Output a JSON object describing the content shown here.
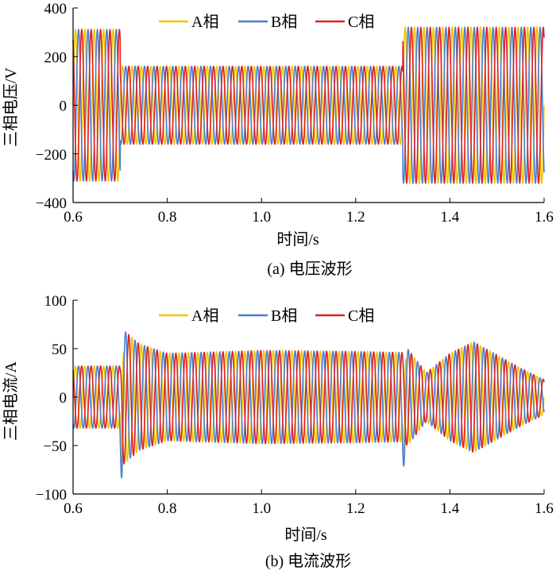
{
  "colors": {
    "A": "#f2c500",
    "B": "#4a7fd0",
    "C": "#e02020",
    "axis": "#000000"
  },
  "chart_data": [
    {
      "type": "line",
      "caption": "(a)  电压波形",
      "xlabel": "时间/s",
      "ylabel": "三相电压/V",
      "xlim": [
        0.6,
        1.6
      ],
      "ylim": [
        -400,
        400
      ],
      "xticks": [
        "0.6",
        "0.8",
        "1.0",
        "1.2",
        "1.4",
        "1.6"
      ],
      "yticks": [
        "400",
        "200",
        "0",
        "−200",
        "−400"
      ],
      "legend": {
        "position": "top",
        "entries": [
          "A相",
          "B相",
          "C相"
        ]
      },
      "frequency_hz": 50,
      "series": [
        {
          "name": "A相",
          "phase_deg": 0
        },
        {
          "name": "B相",
          "phase_deg": -120
        },
        {
          "name": "C相",
          "phase_deg": 120
        }
      ],
      "amplitude_profile": [
        {
          "t": 0.6,
          "amp": 311
        },
        {
          "t": 0.7,
          "amp": 311
        },
        {
          "t": 0.7001,
          "amp": 160
        },
        {
          "t": 1.3,
          "amp": 160
        },
        {
          "t": 1.3001,
          "amp": 320
        },
        {
          "t": 1.6,
          "amp": 320
        }
      ]
    },
    {
      "type": "line",
      "caption": "(b)  电流波形",
      "xlabel": "时间/s",
      "ylabel": "三相电流/A",
      "xlim": [
        0.6,
        1.6
      ],
      "ylim": [
        -100,
        100
      ],
      "xticks": [
        "0.6",
        "0.8",
        "1.0",
        "1.2",
        "1.4",
        "1.6"
      ],
      "yticks": [
        "100",
        "50",
        "0",
        "−50",
        "−100"
      ],
      "legend": {
        "position": "top",
        "entries": [
          "A相",
          "B相",
          "C相"
        ]
      },
      "frequency_hz": 50,
      "series": [
        {
          "name": "A相",
          "phase_deg": 0
        },
        {
          "name": "B相",
          "phase_deg": -120
        },
        {
          "name": "C相",
          "phase_deg": 120
        }
      ],
      "amplitude_profile": [
        {
          "t": 0.6,
          "amp": 32
        },
        {
          "t": 0.7,
          "amp": 32
        },
        {
          "t": 0.705,
          "amp": 70
        },
        {
          "t": 0.74,
          "amp": 55
        },
        {
          "t": 0.8,
          "amp": 45
        },
        {
          "t": 1.0,
          "amp": 48
        },
        {
          "t": 1.2,
          "amp": 47
        },
        {
          "t": 1.3,
          "amp": 46
        },
        {
          "t": 1.31,
          "amp": 50
        },
        {
          "t": 1.35,
          "amp": 25
        },
        {
          "t": 1.4,
          "amp": 45
        },
        {
          "t": 1.45,
          "amp": 57
        },
        {
          "t": 1.55,
          "amp": 30
        },
        {
          "t": 1.6,
          "amp": 18
        }
      ],
      "transient_dips": [
        {
          "t": 0.703,
          "value": -83
        },
        {
          "t": 1.302,
          "value": -71
        }
      ]
    }
  ]
}
